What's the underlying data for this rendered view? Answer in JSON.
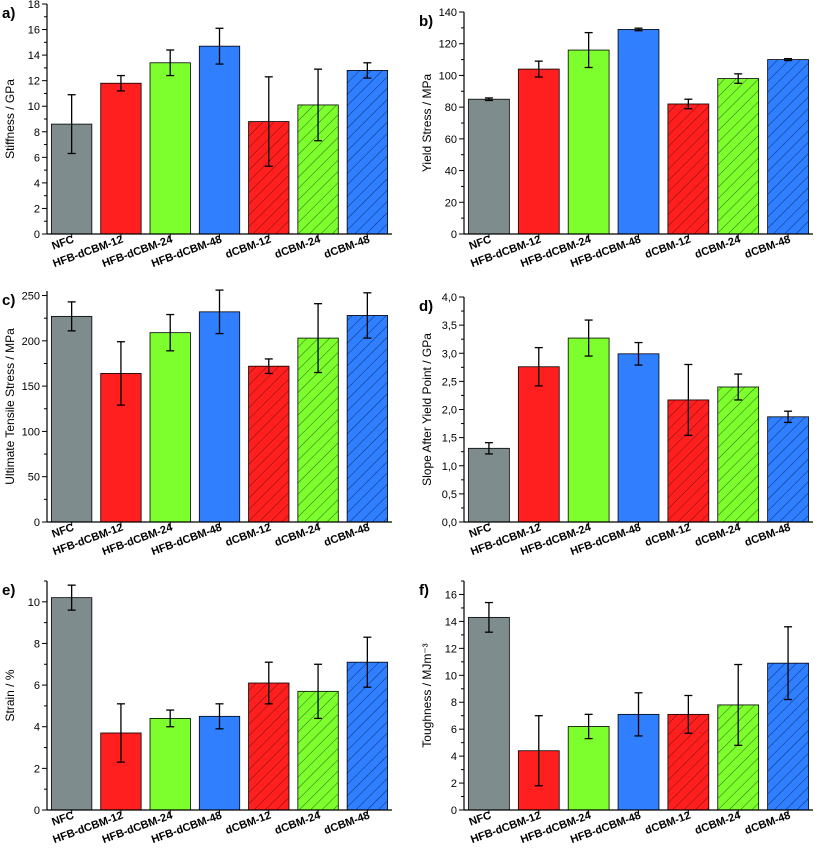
{
  "figure": {
    "colors": {
      "grey": "#7f8c8d",
      "red": "#ff1f1f",
      "green": "#7dff2e",
      "blue": "#2f7fff"
    },
    "bar_styles": [
      {
        "color": "grey",
        "hatch": false
      },
      {
        "color": "red",
        "hatch": false
      },
      {
        "color": "green",
        "hatch": false
      },
      {
        "color": "blue",
        "hatch": false
      },
      {
        "color": "red",
        "hatch": true
      },
      {
        "color": "green",
        "hatch": true
      },
      {
        "color": "blue",
        "hatch": true
      }
    ]
  },
  "chart_data": [
    {
      "panel": "a)",
      "type": "bar",
      "ylabel": "Stiffness / GPa",
      "categories": [
        "NFC",
        "HFB-dCBM-12",
        "HFB-dCBM-24",
        "HFB-dCBM-48",
        "dCBM-12",
        "dCBM-24",
        "dCBM-48"
      ],
      "values": [
        8.6,
        11.8,
        13.4,
        14.7,
        8.8,
        10.1,
        12.8
      ],
      "errors": [
        2.3,
        0.6,
        1.0,
        1.4,
        3.5,
        2.8,
        0.6
      ],
      "ylim": [
        0,
        18
      ],
      "yticks": [
        "0",
        "2",
        "4",
        "6",
        "8",
        "10",
        "12",
        "14",
        "16",
        "18"
      ]
    },
    {
      "panel": "b)",
      "type": "bar",
      "ylabel": "Yield Stress / MPa",
      "categories": [
        "NFC",
        "HFB-dCBM-12",
        "HFB-dCBM-24",
        "HFB-dCBM-48",
        "dCBM-12",
        "dCBM-24",
        "dCBM-48"
      ],
      "values": [
        85,
        104,
        116,
        129,
        82,
        98,
        110
      ],
      "errors": [
        0.8,
        5,
        11,
        0.8,
        3,
        3,
        0.6
      ],
      "ylim": [
        0,
        140
      ],
      "yticks": [
        "0",
        "20",
        "40",
        "60",
        "80",
        "100",
        "120",
        "140"
      ]
    },
    {
      "panel": "c)",
      "type": "bar",
      "ylabel": "Ultimate Tensile Stress / MPa",
      "categories": [
        "NFC",
        "HFB-dCBM-12",
        "HFB-dCBM-24",
        "HFB-dCBM-48",
        "dCBM-12",
        "dCBM-24",
        "dCBM-48"
      ],
      "values": [
        227,
        164,
        209,
        232,
        172,
        203,
        228
      ],
      "errors": [
        16,
        35,
        20,
        24,
        8,
        38,
        25
      ],
      "ylim": [
        0,
        255
      ],
      "yticks": [
        "0",
        "50",
        "100",
        "150",
        "200",
        "250"
      ]
    },
    {
      "panel": "d)",
      "type": "bar",
      "ylabel": "Slope After Yield Point / GPa",
      "categories": [
        "NFC",
        "HFB-dCBM-12",
        "HFB-dCBM-24",
        "HFB-dCBM-48",
        "dCBM-12",
        "dCBM-24",
        "dCBM-48"
      ],
      "values": [
        1.31,
        2.76,
        3.27,
        2.99,
        2.17,
        2.4,
        1.87
      ],
      "errors": [
        0.1,
        0.34,
        0.32,
        0.2,
        0.63,
        0.23,
        0.1
      ],
      "ylim": [
        0,
        4.0
      ],
      "yticks": [
        "0,0",
        "0,5",
        "1,0",
        "1,5",
        "2,0",
        "2,5",
        "3,0",
        "3,5",
        "4,0"
      ]
    },
    {
      "panel": "e)",
      "type": "bar",
      "ylabel": "Strain / %",
      "categories": [
        "NFC",
        "HFB-dCBM-12",
        "HFB-dCBM-24",
        "HFB-dCBM-48",
        "dCBM-12",
        "dCBM-24",
        "dCBM-48"
      ],
      "values": [
        10.2,
        3.7,
        4.4,
        4.5,
        6.1,
        5.7,
        7.1
      ],
      "errors": [
        0.6,
        1.4,
        0.4,
        0.6,
        1.0,
        1.3,
        1.2
      ],
      "ylim": [
        0,
        11
      ],
      "yticks": [
        "0",
        "2",
        "4",
        "6",
        "8",
        "10"
      ]
    },
    {
      "panel": "f)",
      "type": "bar",
      "ylabel": "Toughness / MJm⁻³",
      "categories": [
        "NFC",
        "HFB-dCBM-12",
        "HFB-dCBM-24",
        "HFB-dCBM-48",
        "dCBM-12",
        "dCBM-24",
        "dCBM-48"
      ],
      "values": [
        14.3,
        4.4,
        6.2,
        7.1,
        7.1,
        7.8,
        10.9
      ],
      "errors": [
        1.1,
        2.6,
        0.9,
        1.6,
        1.4,
        3.0,
        2.7
      ],
      "ylim": [
        0,
        17
      ],
      "yticks": [
        "0",
        "2",
        "4",
        "6",
        "8",
        "10",
        "12",
        "14",
        "16"
      ]
    }
  ]
}
